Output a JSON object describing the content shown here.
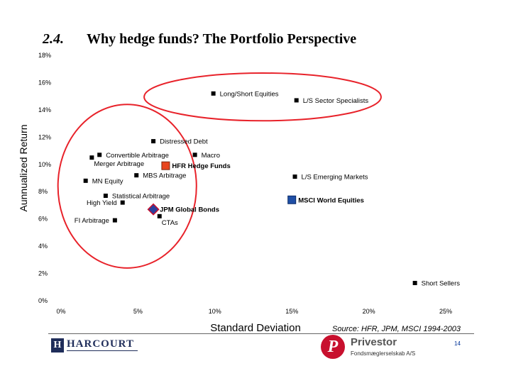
{
  "slide": {
    "number": "2.4.",
    "title": "Why hedge funds? The Portfolio Perspective",
    "source": "Source: HFR, JPM, MSCI 1994-2003",
    "page": "14"
  },
  "logos": {
    "harcourt": {
      "mark": "H",
      "name": "HARCOURT"
    },
    "privestor": {
      "mark": "P",
      "name": "Privestor",
      "sub": "Fondsmæglerselskab A/S"
    }
  },
  "colors": {
    "marker": "#000000",
    "hfr": "#e8451e",
    "msci": "#1f4fa6",
    "jpm_fill": "#2b3f9e",
    "jpm_edge": "#c8102e",
    "ellipse": "#e8222a"
  },
  "chart_data": {
    "type": "scatter",
    "xlabel": "Standard Deviation",
    "ylabel": "Aunnualized Return",
    "xlim": [
      0,
      25
    ],
    "ylim": [
      0,
      18
    ],
    "x_ticks": [
      "0%",
      "5%",
      "10%",
      "15%",
      "20%",
      "25%"
    ],
    "y_ticks": [
      "0%",
      "2%",
      "4%",
      "6%",
      "8%",
      "10%",
      "12%",
      "14%",
      "16%",
      "18%"
    ],
    "grid": false,
    "points": [
      {
        "name": "Long/Short Equities",
        "x": 9.9,
        "y": 15.2,
        "marker": "square",
        "label_pos": "right"
      },
      {
        "name": "L/S Sector Specialists",
        "x": 15.3,
        "y": 14.7,
        "marker": "square",
        "label_pos": "right"
      },
      {
        "name": "Distressed Debt",
        "x": 6.0,
        "y": 11.7,
        "marker": "square",
        "label_pos": "right"
      },
      {
        "name": "Convertible Arbitrage",
        "x": 2.5,
        "y": 10.7,
        "marker": "square",
        "label_pos": "right"
      },
      {
        "name": "Merger Arbitrage",
        "x": 2.0,
        "y": 10.5,
        "marker": "square",
        "label_pos": "below-right"
      },
      {
        "name": "Macro",
        "x": 8.7,
        "y": 10.7,
        "marker": "square",
        "label_pos": "right"
      },
      {
        "name": "HFR Hedge Funds",
        "x": 6.8,
        "y": 9.9,
        "marker": "square",
        "label_pos": "right",
        "highlight": "hfr"
      },
      {
        "name": "MBS Arbitrage",
        "x": 4.9,
        "y": 9.2,
        "marker": "square",
        "label_pos": "right"
      },
      {
        "name": "MN Equity",
        "x": 1.6,
        "y": 8.8,
        "marker": "square",
        "label_pos": "right"
      },
      {
        "name": "L/S Emerging Markets",
        "x": 15.2,
        "y": 9.1,
        "marker": "square",
        "label_pos": "right"
      },
      {
        "name": "Statistical Arbitrage",
        "x": 2.9,
        "y": 7.7,
        "marker": "square",
        "label_pos": "right"
      },
      {
        "name": "High Yield",
        "x": 4.0,
        "y": 7.2,
        "marker": "square",
        "label_pos": "left"
      },
      {
        "name": "MSCI World Equities",
        "x": 15.0,
        "y": 7.4,
        "marker": "square",
        "label_pos": "right",
        "highlight": "msci"
      },
      {
        "name": "JPM Global Bonds",
        "x": 6.0,
        "y": 6.7,
        "marker": "diamond",
        "label_pos": "right",
        "highlight": "jpm"
      },
      {
        "name": "CTAs",
        "x": 6.4,
        "y": 6.2,
        "marker": "square",
        "label_pos": "below-right"
      },
      {
        "name": "FI Arbitrage",
        "x": 3.5,
        "y": 5.9,
        "marker": "square",
        "label_pos": "left"
      },
      {
        "name": "Short Sellers",
        "x": 23.0,
        "y": 1.3,
        "marker": "square",
        "label_pos": "right"
      }
    ],
    "highlight_ellipses": [
      {
        "cx": 13.1,
        "cy": 14.95,
        "rx": 7.7,
        "ry": 1.75
      },
      {
        "cx": 4.3,
        "cy": 8.4,
        "rx": 4.5,
        "ry": 6.0
      }
    ]
  }
}
